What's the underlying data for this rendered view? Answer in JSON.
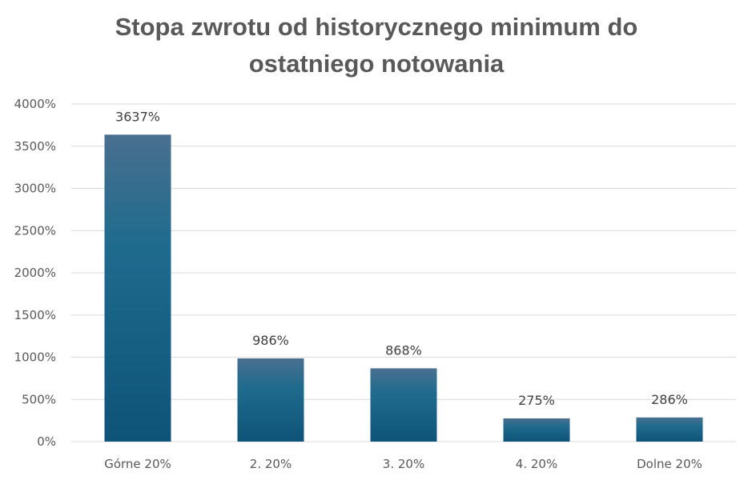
{
  "chart_data": {
    "type": "bar",
    "title_lines": [
      "Stopa zwrotu od historycznego minimum do",
      "ostatniego notowania"
    ],
    "categories": [
      "Górne 20%",
      "2. 20%",
      "3. 20%",
      "4. 20%",
      "Dolne 20%"
    ],
    "values": [
      3637,
      986,
      868,
      275,
      286
    ],
    "data_labels": [
      "3637%",
      "986%",
      "868%",
      "275%",
      "286%"
    ],
    "ylim": [
      0,
      4000
    ],
    "yticks": [
      0,
      500,
      1000,
      1500,
      2000,
      2500,
      3000,
      3500,
      4000
    ],
    "ytick_labels": [
      "0%",
      "500%",
      "1000%",
      "1500%",
      "2000%",
      "2500%",
      "3000%",
      "3500%",
      "4000%"
    ],
    "grid": true,
    "legend": "none",
    "bar_color_top": "#4a6f8f",
    "bar_color_bottom": "#0e5378"
  }
}
